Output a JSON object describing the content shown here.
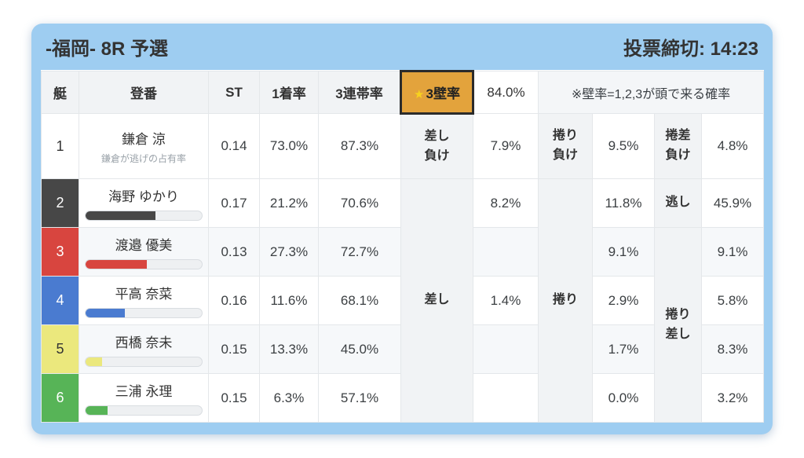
{
  "header": {
    "title": "-福岡- 8R 予選",
    "deadline": "投票締切: 14:23"
  },
  "columns": {
    "boat": "艇",
    "racer": "登番",
    "st": "ST",
    "win_rate": "1着率",
    "top3_rate": "3連帯率"
  },
  "wall": {
    "star": "★",
    "label": "3壁率",
    "value": "84.0%",
    "note": "※壁率=1,2,3が頭で来る確率",
    "chip_bg": "#e3a33c",
    "chip_border": "#2b2b2b",
    "star_color": "#f7d21e"
  },
  "merged_labels": {
    "sashi": "差し",
    "makuri": "捲り",
    "makuri_sashi": "捲り\n差し"
  },
  "rows": [
    {
      "boat": "1",
      "name": "鎌倉 涼",
      "subtext": "鎌倉が逃げの占有率",
      "st": "0.14",
      "win": "73.0%",
      "top3": "87.3%",
      "c1_label": "差し\n負け",
      "c1": "7.9%",
      "c2_label": "捲り\n負け",
      "c2": "9.5%",
      "c3_label": "捲差\n負け",
      "c3": "4.8%",
      "color": "#ffffff",
      "text_color": "#333333"
    },
    {
      "boat": "2",
      "name": "海野 ゆかり",
      "st": "0.17",
      "win": "21.2%",
      "top3": "70.6%",
      "c1": "8.2%",
      "c2": "11.8%",
      "c3_label": "逃し",
      "c3": "45.9%",
      "color": "#474747",
      "text_color": "#ffffff",
      "bar_pct": 60
    },
    {
      "boat": "3",
      "name": "渡邉 優美",
      "st": "0.13",
      "win": "27.3%",
      "top3": "72.7%",
      "c1": "",
      "c2": "9.1%",
      "c3": "9.1%",
      "color": "#d8453f",
      "text_color": "#ffffff",
      "bar_pct": 53
    },
    {
      "boat": "4",
      "name": "平高 奈菜",
      "st": "0.16",
      "win": "11.6%",
      "top3": "68.1%",
      "c1": "1.4%",
      "c2": "2.9%",
      "c3": "5.8%",
      "color": "#4a7bd0",
      "text_color": "#ffffff",
      "bar_pct": 34
    },
    {
      "boat": "5",
      "name": "西橋 奈未",
      "st": "0.15",
      "win": "13.3%",
      "top3": "45.0%",
      "c1": "",
      "c2": "1.7%",
      "c3": "8.3%",
      "color": "#ebe87d",
      "text_color": "#333333",
      "bar_pct": 14
    },
    {
      "boat": "6",
      "name": "三浦 永理",
      "st": "0.15",
      "win": "6.3%",
      "top3": "57.1%",
      "c1": "",
      "c2": "0.0%",
      "c3": "3.2%",
      "color": "#57b457",
      "text_color": "#ffffff",
      "bar_pct": 19
    }
  ],
  "colors": {
    "card_blue": "#9ecdf1",
    "header_gray": "#f1f3f5",
    "stripe": "#f6f8fa"
  }
}
